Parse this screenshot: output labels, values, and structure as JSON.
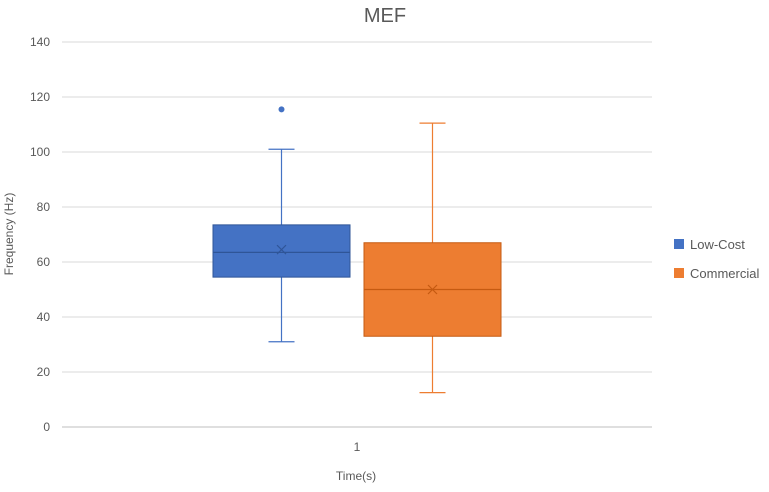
{
  "chart_data": {
    "type": "box",
    "title": "MEF",
    "xlabel": "Time(s)",
    "ylabel": "Frequency (Hz)",
    "categories": [
      "1"
    ],
    "ylim": [
      0,
      140
    ],
    "yticks": [
      0,
      20,
      40,
      60,
      80,
      100,
      120,
      140
    ],
    "grid": true,
    "legend_position": "right",
    "series": [
      {
        "name": "Low-Cost",
        "color": "#4472C4",
        "min": 31,
        "q1": 54.5,
        "median": 63.5,
        "q3": 73.5,
        "max": 101,
        "mean": 64.5,
        "outliers": [
          115.5
        ]
      },
      {
        "name": "Commercial",
        "color": "#ED7D31",
        "min": 12.5,
        "q1": 33,
        "median": 50,
        "q3": 67,
        "max": 110.5,
        "mean": 50
      }
    ]
  }
}
